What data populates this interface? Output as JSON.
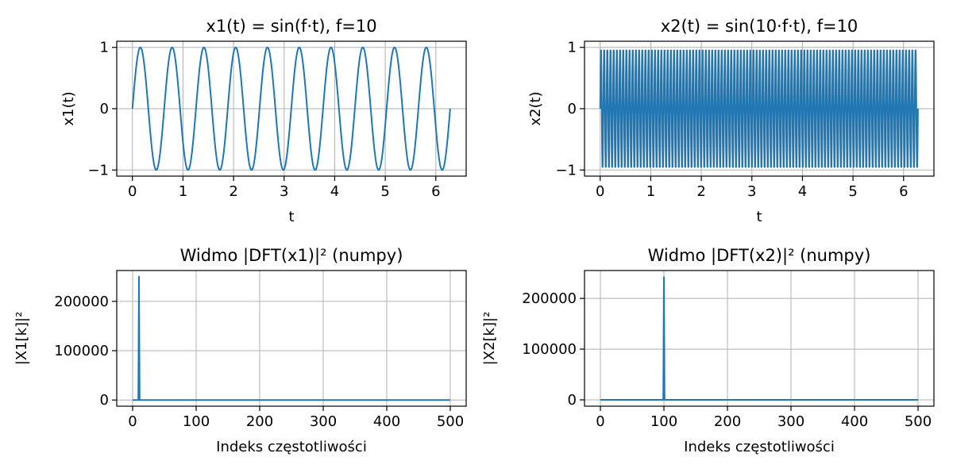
{
  "figure": {
    "line_color": "#1f77b4",
    "grid_color": "#b0b0b0"
  },
  "chart_data": [
    {
      "id": "x1",
      "type": "line",
      "title": "x1(t) = sin(f·t), f=10",
      "xlabel": "t",
      "ylabel": "x1(t)",
      "grid": true,
      "xlim": [
        -0.31,
        6.6
      ],
      "ylim": [
        -1.1,
        1.1
      ],
      "xticks": [
        0,
        1,
        2,
        3,
        4,
        5,
        6
      ],
      "xtick_labels": [
        "0",
        "1",
        "2",
        "3",
        "4",
        "5",
        "6"
      ],
      "yticks": [
        -1,
        0,
        1
      ],
      "ytick_labels": [
        "−1",
        "0",
        "1"
      ],
      "signal": {
        "function": "sin",
        "frequency_multiplier": 1,
        "f": 10,
        "t_start": 0,
        "t_end": 6.2832,
        "samples": 1000
      },
      "series": [
        {
          "values_note": "",
          "x": [
            0,
            6.2832
          ],
          "y": [
            0,
            0
          ]
        }
      ]
    },
    {
      "id": "x2",
      "type": "line",
      "title": "x2(t) = sin(10·f·t), f=10",
      "xlabel": "t",
      "ylabel": "x2(t)",
      "grid": true,
      "xlim": [
        -0.31,
        6.6
      ],
      "ylim": [
        -1.1,
        1.1
      ],
      "xticks": [
        0,
        1,
        2,
        3,
        4,
        5,
        6
      ],
      "xtick_labels": [
        "0",
        "1",
        "2",
        "3",
        "4",
        "5",
        "6"
      ],
      "yticks": [
        -1,
        0,
        1
      ],
      "ytick_labels": [
        "−1",
        "0",
        "1"
      ],
      "signal": {
        "function": "sin",
        "frequency_multiplier": 10,
        "f": 10,
        "t_start": 0,
        "t_end": 6.2832,
        "samples": 1000
      },
      "series": [
        {
          "values_note": "",
          "x": [
            0,
            6.2832
          ],
          "y": [
            0,
            0
          ]
        }
      ]
    },
    {
      "id": "X1",
      "type": "line",
      "title": "Widmo |DFT(x1)|² (numpy)",
      "xlabel": "Indeks częstotliwości",
      "ylabel": "|X1[k]|²",
      "grid": true,
      "xlim": [
        -25,
        525
      ],
      "ylim": [
        -12500,
        262500
      ],
      "xticks": [
        0,
        100,
        200,
        300,
        400,
        500
      ],
      "xtick_labels": [
        "0",
        "100",
        "200",
        "300",
        "400",
        "500"
      ],
      "yticks": [
        0,
        100000,
        200000
      ],
      "ytick_labels": [
        "0",
        "100000",
        "200000"
      ],
      "series": [
        {
          "x": [
            0,
            9,
            10,
            11,
            500
          ],
          "y": [
            0,
            0,
            250000,
            0,
            0
          ]
        }
      ]
    },
    {
      "id": "X2",
      "type": "line",
      "title": "Widmo |DFT(x2)|² (numpy)",
      "xlabel": "Indeks częstotliwości",
      "ylabel": "|X2[k]|²",
      "grid": true,
      "xlim": [
        -25,
        525
      ],
      "ylim": [
        -12500,
        255000
      ],
      "xticks": [
        0,
        100,
        200,
        300,
        400,
        500
      ],
      "xtick_labels": [
        "0",
        "100",
        "200",
        "300",
        "400",
        "500"
      ],
      "yticks": [
        0,
        100000,
        200000
      ],
      "ytick_labels": [
        "0",
        "100000",
        "200000"
      ],
      "series": [
        {
          "x": [
            0,
            99,
            100,
            101,
            500
          ],
          "y": [
            0,
            0,
            242000,
            0,
            0
          ]
        }
      ]
    }
  ]
}
